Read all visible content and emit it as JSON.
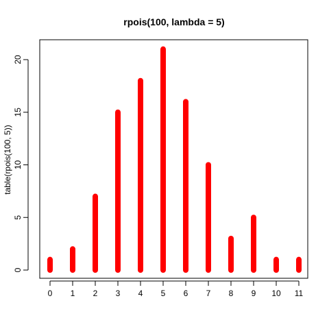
{
  "chart_data": {
    "type": "bar",
    "title": "rpois(100, lambda = 5)",
    "xlabel": "",
    "ylabel": "table(rpois(100, 5))",
    "categories": [
      "0",
      "1",
      "2",
      "3",
      "4",
      "5",
      "6",
      "7",
      "8",
      "9",
      "10",
      "11"
    ],
    "values": [
      1,
      2,
      7,
      15,
      18,
      21,
      16,
      10,
      3,
      5,
      1,
      1
    ],
    "y_ticks": [
      0,
      5,
      10,
      15,
      20
    ],
    "ylim": [
      0,
      22
    ],
    "grid": false,
    "bar_color": "#ff0000"
  }
}
